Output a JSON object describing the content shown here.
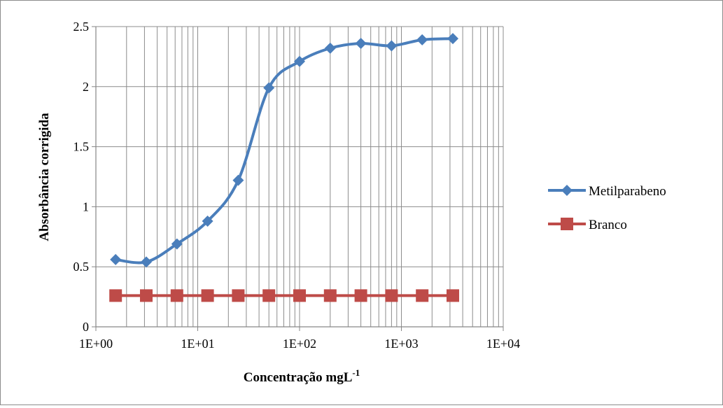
{
  "chart_data": {
    "type": "scatter",
    "title": "",
    "xlabel": "Concentração mgL",
    "xlabel_superscript": "-1",
    "ylabel": "Absorbância corrigida",
    "xscale": "log",
    "xlim": [
      1,
      10000
    ],
    "ylim": [
      0,
      2.5
    ],
    "xticks": [
      1,
      10,
      100,
      1000,
      10000
    ],
    "xtick_labels": [
      "1E+00",
      "1E+01",
      "1E+02",
      "1E+03",
      "1E+04"
    ],
    "yticks": [
      0,
      0.5,
      1,
      1.5,
      2,
      2.5
    ],
    "ytick_labels": [
      "0",
      "0.5",
      "1",
      "1.5",
      "2",
      "2.5"
    ],
    "grid": true,
    "legend": "right",
    "series": [
      {
        "name": "Metilparabeno",
        "color": "#4a7ebb",
        "marker": "diamond",
        "smooth": true,
        "x": [
          1.5625,
          3.125,
          6.25,
          12.5,
          25,
          50,
          100,
          200,
          400,
          800,
          1600,
          3200
        ],
        "y": [
          0.56,
          0.54,
          0.69,
          0.88,
          1.22,
          1.99,
          2.21,
          2.32,
          2.36,
          2.34,
          2.39,
          2.4
        ]
      },
      {
        "name": "Branco",
        "color": "#be4b48",
        "marker": "square",
        "smooth": false,
        "x": [
          1.5625,
          3.125,
          6.25,
          12.5,
          25,
          50,
          100,
          200,
          400,
          800,
          1600,
          3200
        ],
        "y": [
          0.26,
          0.26,
          0.26,
          0.26,
          0.26,
          0.26,
          0.26,
          0.26,
          0.26,
          0.26,
          0.26,
          0.26
        ]
      }
    ]
  }
}
